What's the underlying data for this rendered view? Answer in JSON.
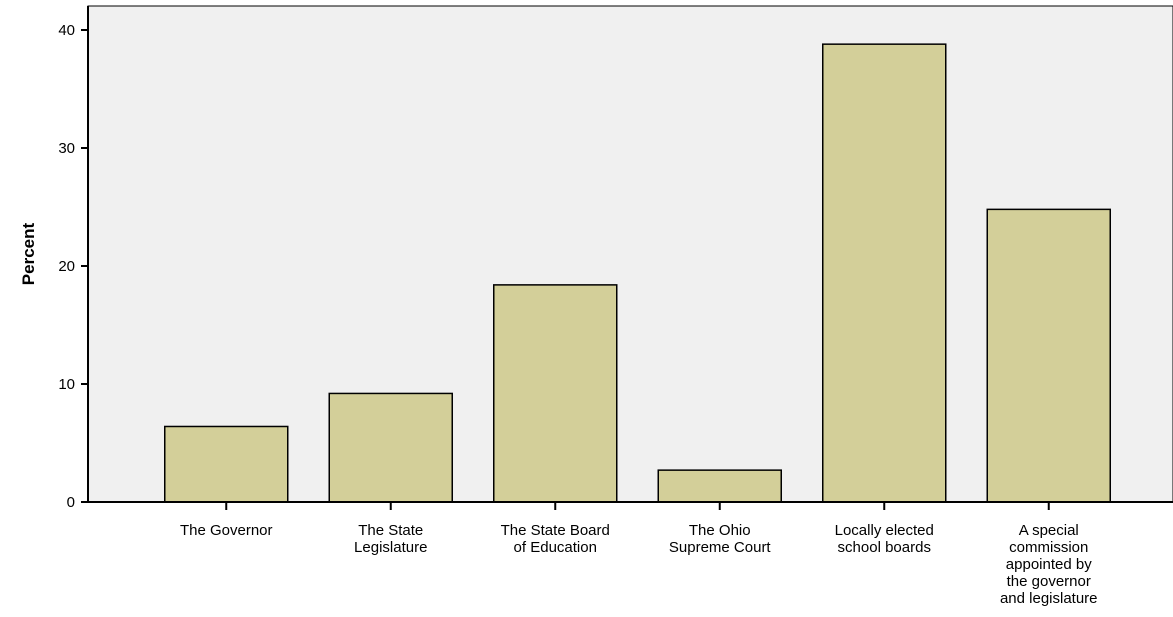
{
  "chart_data": {
    "type": "bar",
    "categories": [
      [
        "The Governor"
      ],
      [
        "The State",
        "Legislature"
      ],
      [
        "The State Board",
        "of Education"
      ],
      [
        "The Ohio",
        "Supreme Court"
      ],
      [
        "Locally elected",
        "school boards"
      ],
      [
        "A special",
        "commission",
        "appointed by",
        "the governor",
        "and legislature"
      ]
    ],
    "values": [
      6.4,
      9.2,
      18.4,
      2.7,
      38.8,
      24.8
    ],
    "title": "",
    "xlabel": "",
    "ylabel": "Percent",
    "ylim": [
      0,
      42
    ],
    "yticks": [
      0,
      10,
      20,
      30,
      40
    ],
    "grid": false,
    "colors": {
      "plot_background": "#f0f0f0",
      "bar_fill": "#d3cf99",
      "bar_stroke": "#000000",
      "axis": "#000000"
    }
  }
}
